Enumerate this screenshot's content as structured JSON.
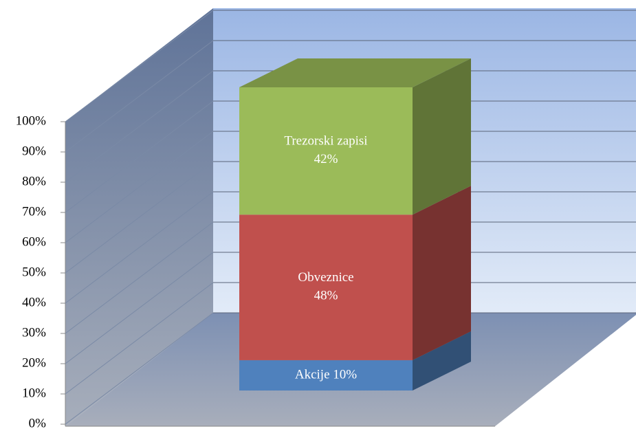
{
  "chart_data": {
    "type": "bar3d_stacked",
    "categories": [
      null
    ],
    "series": [
      {
        "name": "Akcije",
        "color": "#4f81bd",
        "values": [
          10
        ],
        "value_labels": [
          "Akcije 10%"
        ]
      },
      {
        "name": "Obveznice",
        "color": "#c0504d",
        "values": [
          48
        ],
        "value_labels": [
          "Obveznice 48%"
        ]
      },
      {
        "name": "Trezorski zapisi",
        "color": "#9bbb59",
        "values": [
          42
        ],
        "value_labels": [
          "Trezorski zapisi 42%"
        ]
      }
    ],
    "ylim": [
      0,
      100
    ],
    "yticks": [
      {
        "value": 0,
        "label": "0%"
      },
      {
        "value": 10,
        "label": "10%"
      },
      {
        "value": 20,
        "label": "20%"
      },
      {
        "value": 30,
        "label": "30%"
      },
      {
        "value": 40,
        "label": "40%"
      },
      {
        "value": 50,
        "label": "50%"
      },
      {
        "value": 60,
        "label": "60%"
      },
      {
        "value": 70,
        "label": "70%"
      },
      {
        "value": 80,
        "label": "80%"
      },
      {
        "value": 90,
        "label": "90%"
      },
      {
        "value": 100,
        "label": "100%"
      }
    ],
    "grid": true
  }
}
